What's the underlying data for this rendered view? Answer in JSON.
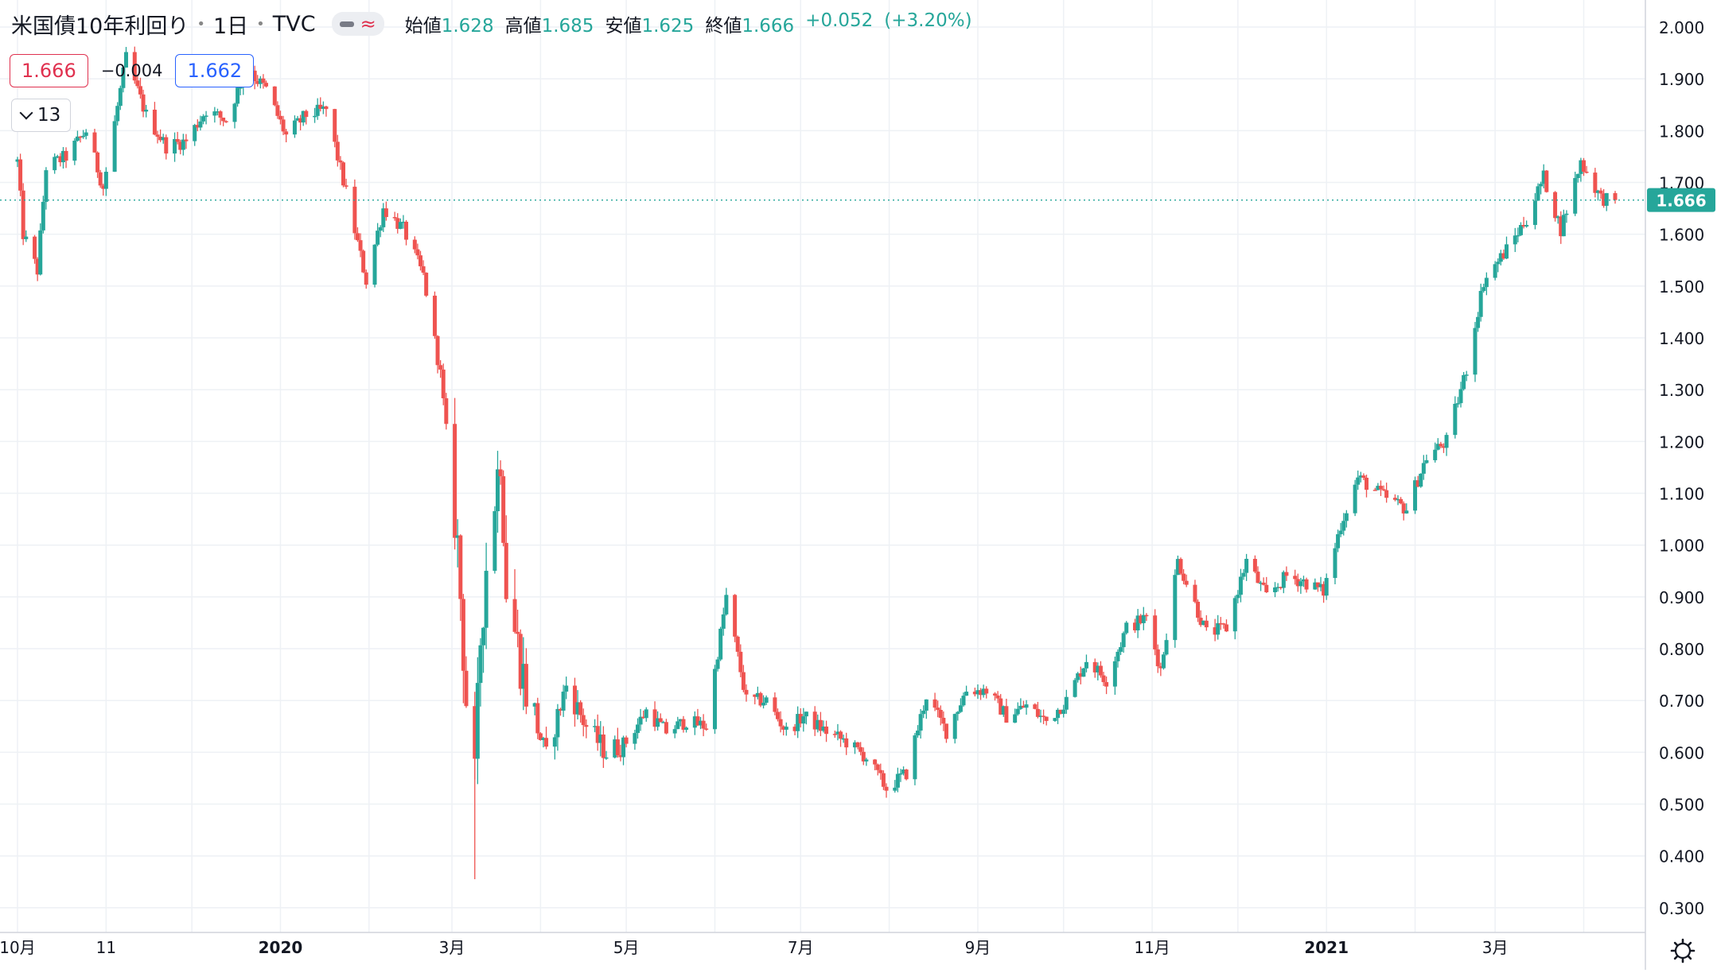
{
  "header": {
    "symbol_name": "米国債10年利回り",
    "timeframe": "1日",
    "source": "TVC",
    "ohlc": {
      "open_label": "始値",
      "open": "1.628",
      "high_label": "高値",
      "high": "1.685",
      "low_label": "安値",
      "low": "1.625",
      "close_label": "終値",
      "close": "1.666",
      "change": "+0.052",
      "change_pct": "(+3.20%)"
    }
  },
  "quote": {
    "sell": "1.666",
    "spread": "−0.004",
    "buy": "1.662"
  },
  "indicators": {
    "count": "13"
  },
  "colors": {
    "up": "#26a69a",
    "down": "#ef5350",
    "grid": "#eef1f5",
    "last_price": "#26a69a"
  },
  "icons": {
    "settings": "gear-icon",
    "collapse": "chevron-down-icon"
  },
  "chart_data": {
    "type": "candlestick",
    "y_axis": {
      "min": 0.27,
      "max": 2.03,
      "ticks": [
        "2.000",
        "1.900",
        "1.800",
        "1.700",
        "1.600",
        "1.500",
        "1.400",
        "1.300",
        "1.200",
        "1.100",
        "1.000",
        "0.900",
        "0.800",
        "0.700",
        "0.600",
        "0.500",
        "0.400",
        "0.300"
      ]
    },
    "x_axis": {
      "labels": [
        "10月",
        "11",
        "2020",
        "3月",
        "5月",
        "7月",
        "9月",
        "11月",
        "2021",
        "3月"
      ]
    },
    "last_price": "1.666",
    "grid": true,
    "anchors": [
      [
        "2019-10-01",
        1.74
      ],
      [
        "2019-10-03",
        1.6
      ],
      [
        "2019-10-08",
        1.53
      ],
      [
        "2019-10-11",
        1.73
      ],
      [
        "2019-10-18",
        1.75
      ],
      [
        "2019-10-25",
        1.8
      ],
      [
        "2019-10-31",
        1.69
      ],
      [
        "2019-11-08",
        1.94
      ],
      [
        "2019-11-15",
        1.83
      ],
      [
        "2019-11-22",
        1.77
      ],
      [
        "2019-11-29",
        1.78
      ],
      [
        "2019-12-06",
        1.84
      ],
      [
        "2019-12-13",
        1.82
      ],
      [
        "2019-12-20",
        1.92
      ],
      [
        "2019-12-27",
        1.88
      ],
      [
        "2020-01-03",
        1.79
      ],
      [
        "2020-01-10",
        1.83
      ],
      [
        "2020-01-17",
        1.84
      ],
      [
        "2020-01-24",
        1.68
      ],
      [
        "2020-01-31",
        1.51
      ],
      [
        "2020-02-06",
        1.65
      ],
      [
        "2020-02-13",
        1.61
      ],
      [
        "2020-02-20",
        1.52
      ],
      [
        "2020-02-26",
        1.33
      ],
      [
        "2020-03-03",
        1.0
      ],
      [
        "2020-03-06",
        0.7
      ],
      [
        "2020-03-09",
        0.54
      ],
      [
        "2020-03-11",
        0.82
      ],
      [
        "2020-03-13",
        0.96
      ],
      [
        "2020-03-18",
        1.18
      ],
      [
        "2020-03-20",
        0.92
      ],
      [
        "2020-03-27",
        0.72
      ],
      [
        "2020-04-03",
        0.59
      ],
      [
        "2020-04-10",
        0.73
      ],
      [
        "2020-04-17",
        0.65
      ],
      [
        "2020-04-24",
        0.6
      ],
      [
        "2020-05-01",
        0.62
      ],
      [
        "2020-05-08",
        0.68
      ],
      [
        "2020-05-15",
        0.64
      ],
      [
        "2020-05-22",
        0.66
      ],
      [
        "2020-05-29",
        0.65
      ],
      [
        "2020-06-05",
        0.9
      ],
      [
        "2020-06-12",
        0.7
      ],
      [
        "2020-06-19",
        0.7
      ],
      [
        "2020-06-26",
        0.64
      ],
      [
        "2020-07-02",
        0.67
      ],
      [
        "2020-07-10",
        0.64
      ],
      [
        "2020-07-17",
        0.62
      ],
      [
        "2020-07-24",
        0.59
      ],
      [
        "2020-07-31",
        0.53
      ],
      [
        "2020-08-07",
        0.56
      ],
      [
        "2020-08-14",
        0.71
      ],
      [
        "2020-08-21",
        0.64
      ],
      [
        "2020-08-28",
        0.72
      ],
      [
        "2020-09-04",
        0.72
      ],
      [
        "2020-09-11",
        0.67
      ],
      [
        "2020-09-18",
        0.69
      ],
      [
        "2020-09-25",
        0.66
      ],
      [
        "2020-10-02",
        0.7
      ],
      [
        "2020-10-09",
        0.78
      ],
      [
        "2020-10-16",
        0.74
      ],
      [
        "2020-10-23",
        0.84
      ],
      [
        "2020-10-30",
        0.86
      ],
      [
        "2020-11-04",
        0.76
      ],
      [
        "2020-11-10",
        0.97
      ],
      [
        "2020-11-20",
        0.83
      ],
      [
        "2020-11-27",
        0.84
      ],
      [
        "2020-12-04",
        0.97
      ],
      [
        "2020-12-11",
        0.9
      ],
      [
        "2020-12-18",
        0.94
      ],
      [
        "2020-12-24",
        0.93
      ],
      [
        "2020-12-31",
        0.91
      ],
      [
        "2021-01-06",
        1.04
      ],
      [
        "2021-01-12",
        1.13
      ],
      [
        "2021-01-22",
        1.09
      ],
      [
        "2021-01-29",
        1.07
      ],
      [
        "2021-02-05",
        1.17
      ],
      [
        "2021-02-12",
        1.2
      ],
      [
        "2021-02-19",
        1.34
      ],
      [
        "2021-02-25",
        1.51
      ],
      [
        "2021-03-05",
        1.57
      ],
      [
        "2021-03-12",
        1.63
      ],
      [
        "2021-03-18",
        1.71
      ],
      [
        "2021-03-24",
        1.61
      ],
      [
        "2021-03-31",
        1.74
      ],
      [
        "2021-04-07",
        1.67
      ],
      [
        "2021-04-12",
        1.666
      ]
    ]
  }
}
